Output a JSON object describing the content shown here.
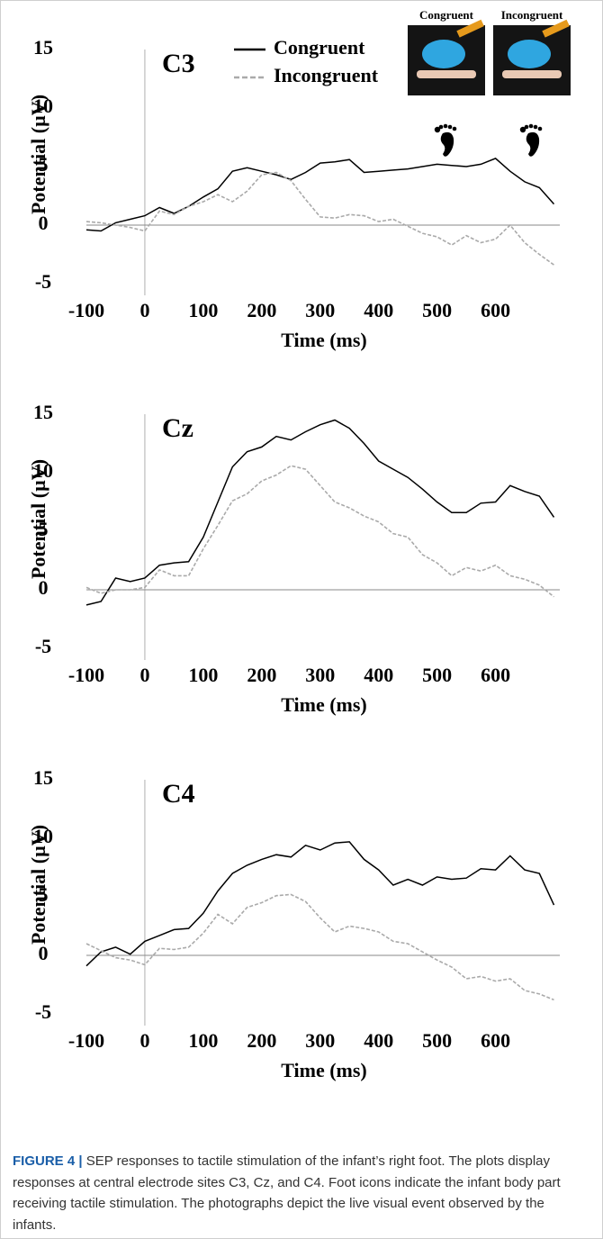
{
  "chart_data": [
    {
      "type": "line",
      "title": "C3",
      "x": [
        -100,
        -75,
        -50,
        -25,
        0,
        25,
        50,
        75,
        100,
        125,
        150,
        175,
        200,
        225,
        250,
        275,
        300,
        325,
        350,
        375,
        400,
        425,
        450,
        475,
        500,
        525,
        550,
        575,
        600,
        625,
        650,
        675,
        700
      ],
      "series": [
        {
          "name": "Congruent",
          "color": "#000000",
          "dashed": false,
          "values": [
            -0.4,
            -0.5,
            0.2,
            0.5,
            0.8,
            1.5,
            1.0,
            1.6,
            2.4,
            3.1,
            4.6,
            4.9,
            4.6,
            4.3,
            3.9,
            4.5,
            5.3,
            5.4,
            5.6,
            4.5,
            4.6,
            4.7,
            4.8,
            5.0,
            5.2,
            5.1,
            5.0,
            5.2,
            5.7,
            4.6,
            3.7,
            3.2,
            1.8
          ]
        },
        {
          "name": "Incongruent",
          "color": "#aaaaaa",
          "dashed": true,
          "values": [
            0.3,
            0.2,
            0.0,
            -0.2,
            -0.5,
            1.2,
            0.9,
            1.6,
            2.0,
            2.6,
            2.0,
            2.9,
            4.3,
            4.5,
            3.8,
            2.2,
            0.7,
            0.6,
            0.9,
            0.8,
            0.3,
            0.5,
            -0.1,
            -0.7,
            -1.0,
            -1.7,
            -0.9,
            -1.5,
            -1.2,
            0.0,
            -1.5,
            -2.5,
            -3.4
          ]
        }
      ],
      "photos": [
        "Congruent",
        "Incongruent"
      ],
      "xlabel": "Time (ms)",
      "ylabel": "Potential (µV)",
      "xlim": [
        -100,
        710
      ],
      "ylim": [
        -6,
        15
      ],
      "xticks": [
        -100,
        0,
        100,
        200,
        300,
        400,
        500,
        600
      ],
      "yticks": [
        15,
        10,
        5,
        0,
        -5
      ],
      "legend": "top"
    },
    {
      "type": "line",
      "title": "Cz",
      "x": [
        -100,
        -75,
        -50,
        -25,
        0,
        25,
        50,
        75,
        100,
        125,
        150,
        175,
        200,
        225,
        250,
        275,
        300,
        325,
        350,
        375,
        400,
        425,
        450,
        475,
        500,
        525,
        550,
        575,
        600,
        625,
        650,
        675,
        700
      ],
      "series": [
        {
          "name": "Congruent",
          "color": "#000000",
          "dashed": false,
          "values": [
            -1.3,
            -1.0,
            1.0,
            0.7,
            1.0,
            2.1,
            2.3,
            2.4,
            4.5,
            7.5,
            10.5,
            11.8,
            12.2,
            13.1,
            12.8,
            13.5,
            14.1,
            14.5,
            13.8,
            12.5,
            11.0,
            10.3,
            9.6,
            8.6,
            7.5,
            6.6,
            6.6,
            7.4,
            7.5,
            8.9,
            8.4,
            8.0,
            6.2
          ]
        },
        {
          "name": "Incongruent",
          "color": "#aaaaaa",
          "dashed": true,
          "values": [
            0.2,
            -0.3,
            0.0,
            0.0,
            0.2,
            1.7,
            1.2,
            1.2,
            3.5,
            5.5,
            7.6,
            8.2,
            9.3,
            9.8,
            10.6,
            10.3,
            8.9,
            7.5,
            7.0,
            6.3,
            5.8,
            4.8,
            4.5,
            3.0,
            2.3,
            1.2,
            1.9,
            1.6,
            2.1,
            1.2,
            0.9,
            0.4,
            -0.6
          ]
        }
      ],
      "xlabel": "Time (ms)",
      "ylabel": "Potential (µV)",
      "xlim": [
        -100,
        710
      ],
      "ylim": [
        -6,
        15
      ],
      "xticks": [
        -100,
        0,
        100,
        200,
        300,
        400,
        500,
        600
      ],
      "yticks": [
        15,
        10,
        5,
        0,
        -5
      ]
    },
    {
      "type": "line",
      "title": "C4",
      "x": [
        -100,
        -75,
        -50,
        -25,
        0,
        25,
        50,
        75,
        100,
        125,
        150,
        175,
        200,
        225,
        250,
        275,
        300,
        325,
        350,
        375,
        400,
        425,
        450,
        475,
        500,
        525,
        550,
        575,
        600,
        625,
        650,
        675,
        700
      ],
      "series": [
        {
          "name": "Congruent",
          "color": "#000000",
          "dashed": false,
          "values": [
            -0.9,
            0.3,
            0.7,
            0.1,
            1.2,
            1.7,
            2.2,
            2.3,
            3.6,
            5.5,
            7.0,
            7.7,
            8.2,
            8.6,
            8.4,
            9.4,
            9.0,
            9.6,
            9.7,
            8.2,
            7.3,
            6.0,
            6.5,
            6.0,
            6.7,
            6.5,
            6.6,
            7.4,
            7.3,
            8.5,
            7.3,
            7.0,
            4.3
          ]
        },
        {
          "name": "Incongruent",
          "color": "#aaaaaa",
          "dashed": true,
          "values": [
            1.0,
            0.4,
            -0.2,
            -0.4,
            -0.8,
            0.6,
            0.5,
            0.7,
            1.9,
            3.5,
            2.7,
            4.1,
            4.5,
            5.1,
            5.2,
            4.6,
            3.2,
            2.0,
            2.5,
            2.3,
            2.0,
            1.2,
            1.0,
            0.3,
            -0.4,
            -1.0,
            -2.0,
            -1.8,
            -2.2,
            -2.0,
            -3.0,
            -3.3,
            -3.8
          ]
        }
      ],
      "xlabel": "Time (ms)",
      "ylabel": "Potential (µV)",
      "xlim": [
        -100,
        710
      ],
      "ylim": [
        -6,
        15
      ],
      "xticks": [
        -100,
        0,
        100,
        200,
        300,
        400,
        500,
        600
      ],
      "yticks": [
        15,
        10,
        5,
        0,
        -5
      ]
    }
  ],
  "caption": {
    "label": "FIGURE 4 |",
    "text": "SEP responses to tactile stimulation of the infant’s right foot. The plots display responses at central electrode sites C3, Cz, and C4. Foot icons indicate the infant body part receiving tactile stimulation. The photographs depict the live visual event observed by the infants."
  }
}
